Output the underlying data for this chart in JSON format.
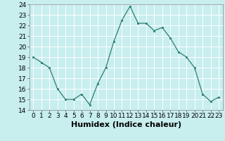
{
  "x": [
    0,
    1,
    2,
    3,
    4,
    5,
    6,
    7,
    8,
    9,
    10,
    11,
    12,
    13,
    14,
    15,
    16,
    17,
    18,
    19,
    20,
    21,
    22,
    23
  ],
  "y": [
    19.0,
    18.5,
    18.0,
    16.0,
    15.0,
    15.0,
    15.5,
    14.5,
    16.5,
    18.0,
    20.5,
    22.5,
    23.8,
    22.2,
    22.2,
    21.5,
    21.8,
    20.8,
    19.5,
    19.0,
    18.0,
    15.5,
    14.8,
    15.2
  ],
  "line_color": "#2e7d6e",
  "marker_color": "#2e7d6e",
  "bg_color": "#c8eeee",
  "grid_color": "#ffffff",
  "xlabel": "Humidex (Indice chaleur)",
  "ylim": [
    14,
    24
  ],
  "xlim": [
    -0.5,
    23.5
  ],
  "yticks": [
    14,
    15,
    16,
    17,
    18,
    19,
    20,
    21,
    22,
    23,
    24
  ],
  "xticks": [
    0,
    1,
    2,
    3,
    4,
    5,
    6,
    7,
    8,
    9,
    10,
    11,
    12,
    13,
    14,
    15,
    16,
    17,
    18,
    19,
    20,
    21,
    22,
    23
  ],
  "xlabel_fontsize": 8,
  "tick_fontsize": 6.5
}
